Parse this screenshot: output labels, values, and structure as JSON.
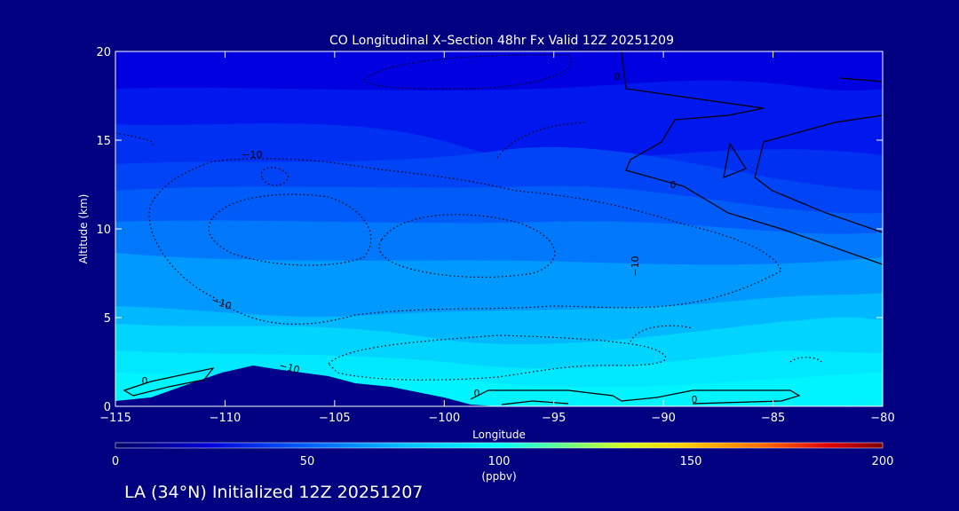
{
  "chart_data": {
    "type": "heatmap",
    "title": "CO Longitudinal X–Section 48hr  Fx Valid 12Z 20251209",
    "xlabel": "Longitude",
    "ylabel": "Altitude (km)",
    "xlim": [
      -115,
      -80
    ],
    "ylim": [
      0,
      20
    ],
    "x_ticks": [
      "−115",
      "−110",
      "−105",
      "−100",
      "−95",
      "−90",
      "−85",
      "−80"
    ],
    "y_ticks": [
      "0",
      "5",
      "10",
      "15",
      "20"
    ],
    "colorbar": {
      "ticks": [
        "0",
        "50",
        "100",
        "150",
        "200"
      ],
      "label_value": "100",
      "unit": "(ppbv)",
      "range": [
        0,
        200
      ]
    },
    "contour_labels": [
      "−10",
      "−10",
      "−10",
      "−10",
      "0",
      "0",
      "0",
      "0",
      "0"
    ],
    "colors": {
      "background": "#000080",
      "terrain": "#00008b",
      "layers": [
        "#0000e0",
        "#0018ee",
        "#0044f5",
        "#0070fa",
        "#0099ff",
        "#00b8ff",
        "#00d4ff",
        "#00e8ff",
        "#00f4ff"
      ]
    }
  },
  "footer": "LA (34°N) Initialized 12Z 20251207"
}
